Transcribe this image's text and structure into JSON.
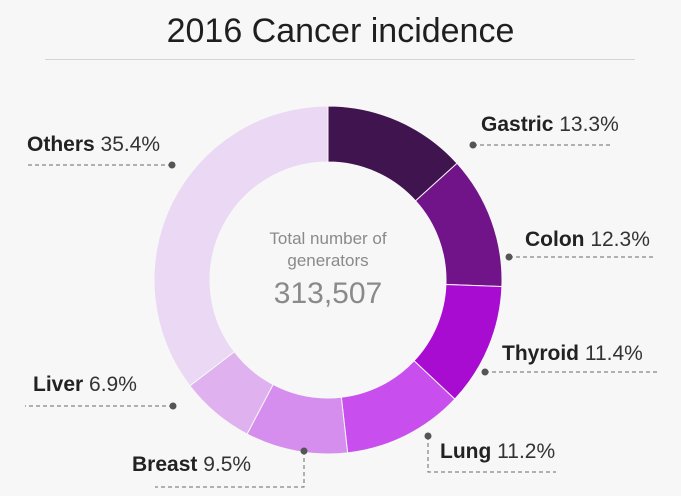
{
  "chart_data": {
    "type": "pie",
    "donut": true,
    "title": "2016 Cancer incidence",
    "center_label_line1": "Total number of",
    "center_label_line2": "generators",
    "total": "313,507",
    "slices": [
      {
        "name": "Gastric",
        "value": 13.3,
        "label": "13.3%",
        "color": "#40144f"
      },
      {
        "name": "Colon",
        "value": 12.3,
        "label": "12.3%",
        "color": "#721489"
      },
      {
        "name": "Thyroid",
        "value": 11.4,
        "label": "11.4%",
        "color": "#a70cd0"
      },
      {
        "name": "Lung",
        "value": 11.2,
        "label": "11.2%",
        "color": "#c84fee"
      },
      {
        "name": "Breast",
        "value": 9.5,
        "label": "9.5%",
        "color": "#d58dee"
      },
      {
        "name": "Liver",
        "value": 6.9,
        "label": "6.9%",
        "color": "#dfb1ef"
      },
      {
        "name": "Others",
        "value": 35.4,
        "label": "35.4%",
        "color": "#ead8f4"
      }
    ]
  }
}
